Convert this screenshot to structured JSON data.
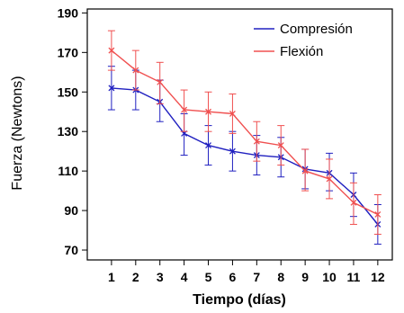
{
  "chart_data": {
    "type": "line",
    "title": "",
    "xlabel": "Tiempo (días)",
    "ylabel": "Fuerza (Newtons)",
    "x": [
      1,
      2,
      3,
      4,
      5,
      6,
      7,
      8,
      9,
      10,
      11,
      12
    ],
    "x_tick_labels": [
      "1",
      "2",
      "3",
      "4",
      "5",
      "6",
      "7",
      "8",
      "9",
      "10",
      "11",
      "12"
    ],
    "y_ticks": [
      70,
      90,
      110,
      130,
      150,
      170,
      190
    ],
    "y_tick_labels": [
      "70",
      "90",
      "110",
      "130",
      "150",
      "170",
      "190"
    ],
    "xlim": [
      0,
      12.6
    ],
    "ylim": [
      65,
      192
    ],
    "grid": false,
    "legend_position": "top-right",
    "error_bars": true,
    "series": [
      {
        "name": "Compresión",
        "color": "#2020c0",
        "values": [
          152,
          151,
          145,
          129,
          123,
          120,
          118,
          117,
          111,
          109,
          98,
          83
        ],
        "err_low": [
          141,
          141,
          135,
          118,
          113,
          110,
          108,
          107,
          101,
          100,
          87,
          73
        ],
        "err_high": [
          163,
          161,
          156,
          139,
          133,
          130,
          128,
          127,
          121,
          119,
          109,
          93
        ]
      },
      {
        "name": "Flexión",
        "color": "#f05050",
        "values": [
          171,
          161,
          155,
          141,
          140,
          139,
          125,
          123,
          110,
          106,
          94,
          88
        ],
        "err_low": [
          161,
          151,
          144,
          130,
          130,
          129,
          115,
          113,
          100,
          96,
          83,
          78
        ],
        "err_high": [
          181,
          171,
          165,
          151,
          150,
          149,
          135,
          133,
          121,
          116,
          104,
          98
        ]
      }
    ]
  }
}
